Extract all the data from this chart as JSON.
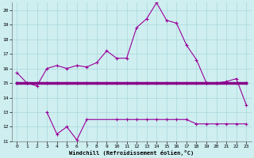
{
  "xlabel": "Windchill (Refroidissement éolien,°C)",
  "bg_color": "#ceeef0",
  "grid_color": "#aad8dc",
  "line_color": "#990099",
  "line_color2": "#880088",
  "xmin": 0,
  "xmax": 23,
  "ymin": 11,
  "ymax": 20.5,
  "yticks": [
    11,
    12,
    13,
    14,
    15,
    16,
    17,
    18,
    19,
    20
  ],
  "series1_x": [
    0,
    1,
    2,
    3,
    4,
    5,
    6,
    7,
    8,
    9,
    10,
    11,
    12,
    13,
    14,
    15,
    16,
    17,
    18,
    19,
    20,
    21,
    22,
    23
  ],
  "series1_y": [
    15.7,
    15.0,
    14.8,
    16.0,
    16.2,
    16.0,
    16.2,
    16.1,
    16.4,
    17.2,
    16.7,
    16.7,
    18.8,
    19.4,
    20.5,
    19.3,
    19.1,
    17.6,
    16.6,
    15.0,
    15.0,
    15.1,
    15.3,
    13.5
  ],
  "series2_x": [
    0,
    1,
    2,
    3,
    4,
    5,
    6,
    7,
    8,
    9,
    10,
    11,
    12,
    13,
    14,
    15,
    16,
    17,
    18,
    19,
    20,
    21,
    22,
    23
  ],
  "series2_y": [
    15.0,
    15.0,
    15.0,
    15.0,
    15.0,
    15.0,
    15.0,
    15.0,
    15.0,
    15.0,
    15.0,
    15.0,
    15.0,
    15.0,
    15.0,
    15.0,
    15.0,
    15.0,
    15.0,
    15.0,
    15.0,
    15.0,
    15.0,
    15.0
  ],
  "series3_x": [
    3,
    4,
    5,
    6,
    7,
    10,
    11,
    12,
    13,
    14,
    15,
    16,
    17,
    18,
    19,
    20,
    21,
    22,
    23
  ],
  "series3_y": [
    13.0,
    11.5,
    12.0,
    11.1,
    12.5,
    12.5,
    12.5,
    12.5,
    12.5,
    12.5,
    12.5,
    12.5,
    12.5,
    12.2,
    12.2,
    12.2,
    12.2,
    12.2,
    12.2
  ]
}
